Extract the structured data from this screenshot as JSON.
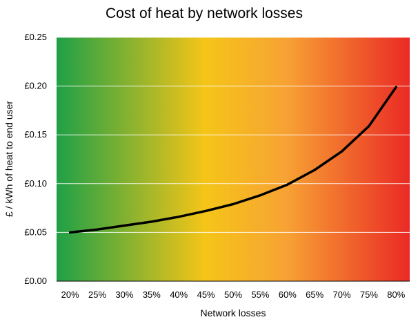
{
  "chart_data": {
    "type": "line",
    "title": "Cost of heat by network losses",
    "xlabel": "Network losses",
    "ylabel": "£ / kWh of heat to end user",
    "x": [
      "20%",
      "25%",
      "30%",
      "35%",
      "40%",
      "45%",
      "50%",
      "55%",
      "60%",
      "65%",
      "70%",
      "75%",
      "80%"
    ],
    "series": [
      {
        "name": "",
        "color": "#000000",
        "values": [
          0.05,
          0.053,
          0.057,
          0.061,
          0.066,
          0.072,
          0.079,
          0.088,
          0.099,
          0.114,
          0.133,
          0.159,
          0.199
        ]
      }
    ],
    "yticks": [
      "£0.00",
      "£0.05",
      "£0.10",
      "£0.15",
      "£0.20",
      "£0.25"
    ],
    "ylim": [
      0,
      0.25
    ],
    "grid": true,
    "legend": "none",
    "background_gradient": [
      "#1fa046",
      "#f5c518",
      "#f7a234",
      "#ea2a25"
    ]
  }
}
